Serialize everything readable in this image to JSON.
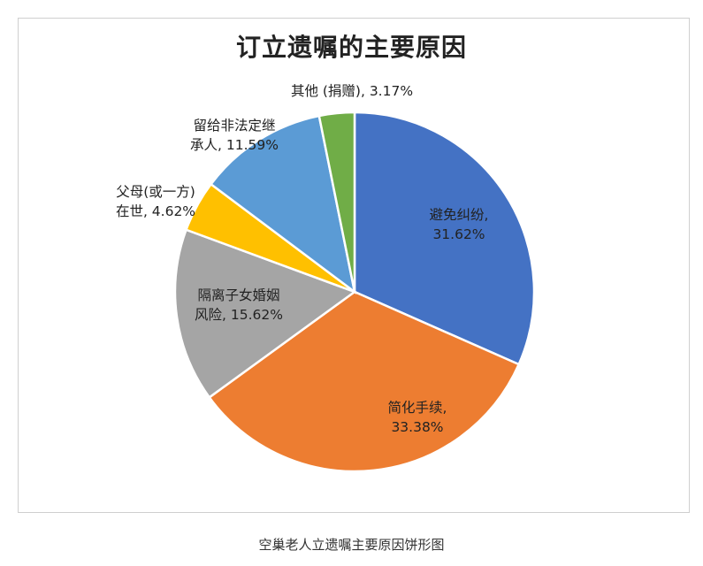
{
  "chart_data": {
    "type": "pie",
    "title": "订立遗嘱的主要原因",
    "caption": "空巢老人立遗嘱主要原因饼形图",
    "slices": [
      {
        "label": "避免纠纷",
        "value": 31.62,
        "color": "#4472C4",
        "text_lines": [
          "避免纠纷,",
          "31.62%"
        ]
      },
      {
        "label": "简化手续",
        "value": 33.38,
        "color": "#ED7D31",
        "text_lines": [
          "简化手续,",
          "33.38%"
        ]
      },
      {
        "label": "隔离子女婚姻风险",
        "value": 15.62,
        "color": "#A5A5A5",
        "text_lines": [
          "隔离子女婚姻",
          "风险, 15.62%"
        ]
      },
      {
        "label": "父母(或一方)在世",
        "value": 4.62,
        "color": "#FFC000",
        "text_lines": [
          "父母(或一方)",
          "在世, 4.62%"
        ]
      },
      {
        "label": "留给非法定继承人",
        "value": 11.59,
        "color": "#5B9BD5",
        "text_lines": [
          "留给非法定继",
          "承人, 11.59%"
        ]
      },
      {
        "label": "其他 (捐赠)",
        "value": 3.17,
        "color": "#70AD47",
        "text_lines": [
          "其他 (捐赠), 3.17%"
        ]
      }
    ]
  }
}
